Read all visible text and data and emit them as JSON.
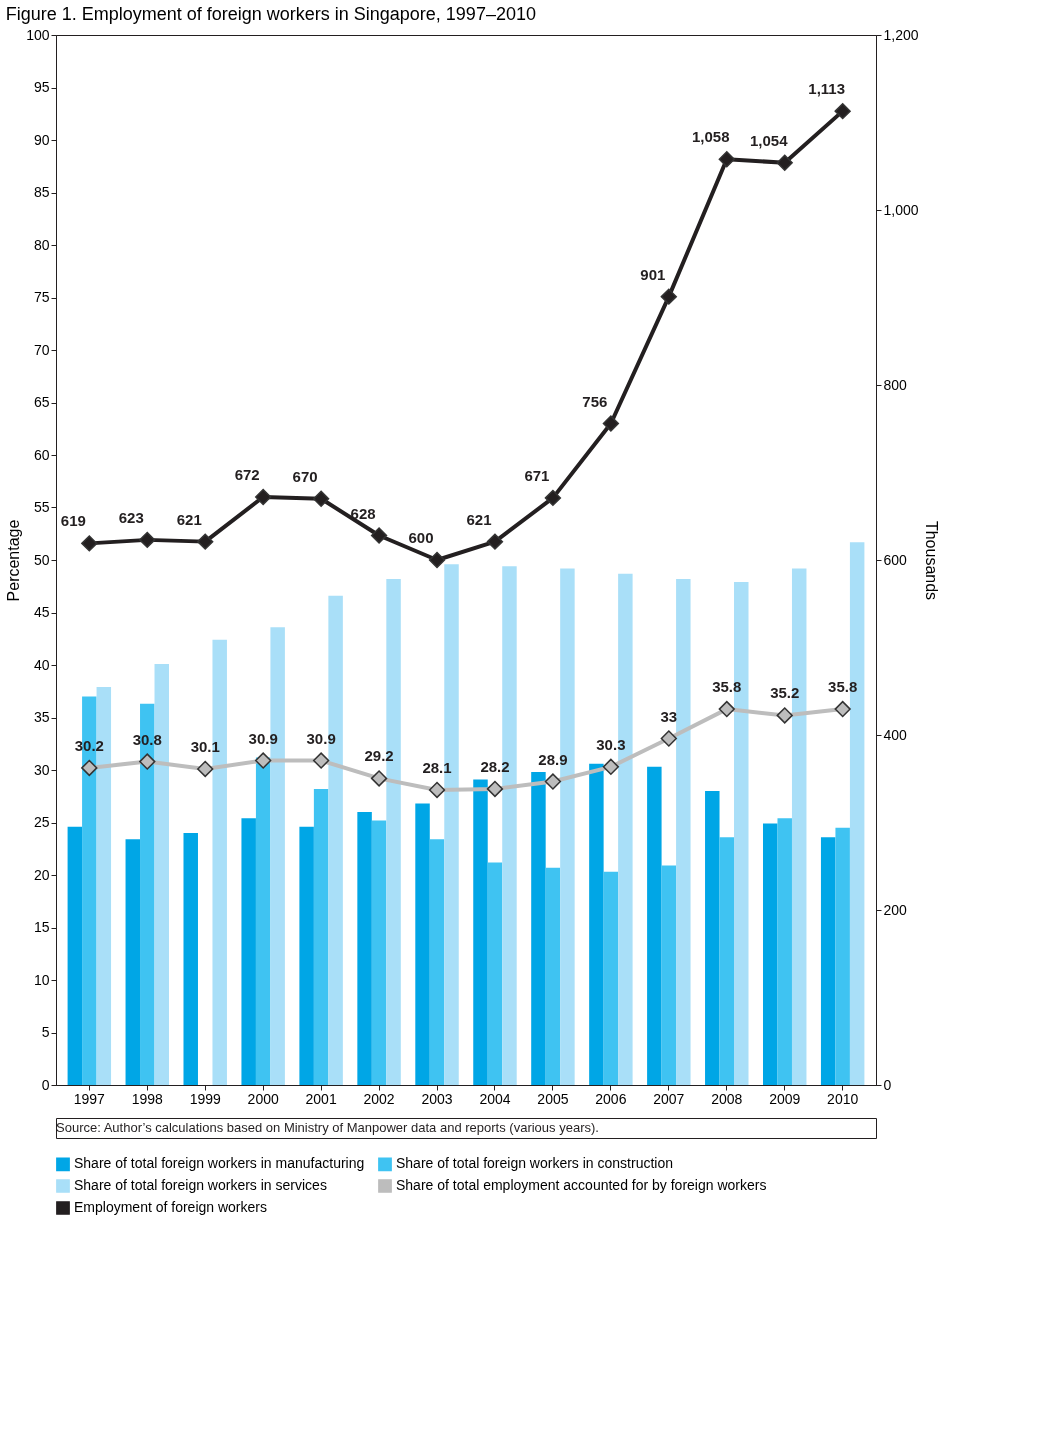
{
  "chart_data": {
    "type": "bar",
    "title": "Figure 1.  Employment of foreign workers in Singapore, 1997–2010",
    "ylabel": "Percentage",
    "y2label": "Thousands",
    "categories": [
      "1997",
      "1998",
      "1999",
      "2000",
      "2001",
      "2002",
      "2003",
      "2004",
      "2005",
      "2006",
      "2007",
      "2008",
      "2009",
      "2010"
    ],
    "series": [
      {
        "name": "Share of total foreign workers in manufacturing",
        "type": "bar",
        "color": "#00a6e6",
        "values": [
          24.6,
          23.4,
          24.0,
          25.4,
          24.6,
          26.0,
          26.8,
          29.1,
          29.8,
          30.6,
          30.3,
          28.0,
          24.9,
          23.6
        ]
      },
      {
        "name": "Share of total foreign workers in construction",
        "type": "bar",
        "color": "#3fc3f2",
        "values": [
          37.0,
          36.3,
          null,
          31.2,
          28.2,
          25.2,
          23.4,
          21.2,
          20.7,
          20.3,
          20.9,
          23.6,
          25.4,
          24.5
        ]
      },
      {
        "name": "Share of total foreign workers in services",
        "type": "bar",
        "color": "#a9dff8",
        "values": [
          37.9,
          40.1,
          42.4,
          43.6,
          46.6,
          48.2,
          49.6,
          49.4,
          49.2,
          48.7,
          48.2,
          47.9,
          49.2,
          51.7
        ]
      },
      {
        "name": "Share of total employment accounted for by foreign workers",
        "type": "line",
        "color": "#bdbdbd",
        "values": [
          30.2,
          30.8,
          30.1,
          30.9,
          30.9,
          29.2,
          28.1,
          28.2,
          28.9,
          30.3,
          33,
          35.8,
          35.2,
          35.8
        ],
        "value_labels": [
          "30.2",
          "30.8",
          "30.1",
          "30.9",
          "30.9",
          "29.2",
          "28.1",
          "28.2",
          "28.9",
          "30.3",
          "33",
          "35.8",
          "35.2",
          "35.8"
        ]
      },
      {
        "name": "Employment of foreign workers",
        "type": "line",
        "axis": "y2",
        "color": "#231f20",
        "values": [
          619,
          623,
          621,
          672,
          670,
          628,
          600,
          621,
          671,
          756,
          901,
          1058,
          1054,
          1113
        ],
        "value_labels": [
          "619",
          "623",
          "621",
          "672",
          "670",
          "628",
          "600",
          "621",
          "671",
          "756",
          "901",
          "1,058",
          "1,054",
          "1,113"
        ]
      }
    ],
    "ylim": [
      0,
      100
    ],
    "yticks": [
      0,
      5,
      10,
      15,
      20,
      25,
      30,
      35,
      40,
      45,
      50,
      55,
      60,
      65,
      70,
      75,
      80,
      85,
      90,
      95,
      100
    ],
    "y2lim": [
      0,
      1200
    ],
    "y2ticks": [
      0,
      200,
      400,
      600,
      800,
      {
        "value": 1000,
        "label": "1,000"
      },
      {
        "value": 1200,
        "label": "1,200"
      }
    ],
    "marker": "diamond",
    "legend": "bottom",
    "grid": false,
    "annotations": [
      "Source: Author’s calculations based on Ministry of Manpower data and reports (various years)."
    ]
  }
}
